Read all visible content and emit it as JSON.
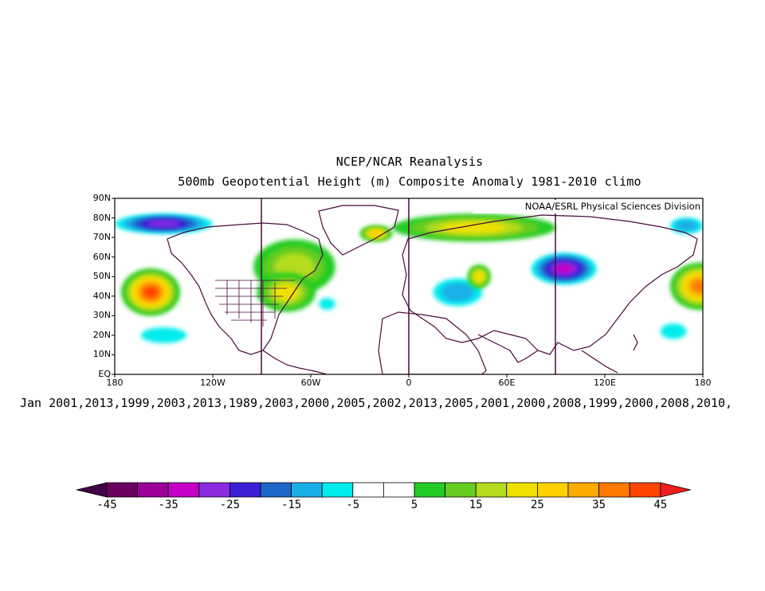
{
  "title_line1": "NCEP/NCAR Reanalysis",
  "title_line2": "500mb Geopotential Height (m) Composite Anomaly 1981-2010 climo",
  "credit": "NOAA/ESRL Physical Sciences Division",
  "years_line": "Jan 2001,2013,1999,2003,2013,1989,2003,2000,2005,2002,2013,2005,2001,2000,2008,1999,2000,2008,2010,",
  "lat_labels": [
    "90N",
    "80N",
    "70N",
    "60N",
    "50N",
    "40N",
    "30N",
    "20N",
    "10N",
    "EQ"
  ],
  "lon_labels": [
    "180",
    "120W",
    "60W",
    "0",
    "60E",
    "120E",
    "180"
  ],
  "colorbar": {
    "labels": [
      "-45",
      "-35",
      "-25",
      "-15",
      "-5",
      "5",
      "15",
      "25",
      "35",
      "45"
    ],
    "colors": [
      "#6a005f",
      "#9a0099",
      "#c400c4",
      "#8a2be2",
      "#3b1fd6",
      "#1d66c8",
      "#1aaee6",
      "#00ecec",
      "#ffffff",
      "#ffffff",
      "#22cc22",
      "#66cc22",
      "#b4dc1e",
      "#f0e000",
      "#ffd000",
      "#ffaa00",
      "#ff7800",
      "#ff4400"
    ],
    "low_color": "#440044",
    "high_color": "#ee1e1e"
  },
  "map": {
    "lon_range": [
      -180,
      180
    ],
    "lat_range": [
      0,
      90
    ],
    "anomaly_blobs": [
      {
        "lon": -158,
        "lat": 42,
        "rx": 18,
        "ry": 12,
        "value": 40
      },
      {
        "lon": -150,
        "lat": 77,
        "rx": 30,
        "ry": 5,
        "value": -25
      },
      {
        "lon": -150,
        "lat": 20,
        "rx": 14,
        "ry": 4,
        "value": -8
      },
      {
        "lon": -70,
        "lat": 55,
        "rx": 25,
        "ry": 14,
        "value": 15
      },
      {
        "lon": -75,
        "lat": 42,
        "rx": 18,
        "ry": 10,
        "value": 20
      },
      {
        "lon": -50,
        "lat": 36,
        "rx": 5,
        "ry": 3,
        "value": -8
      },
      {
        "lon": -20,
        "lat": 72,
        "rx": 10,
        "ry": 4,
        "value": 28
      },
      {
        "lon": 30,
        "lat": 42,
        "rx": 15,
        "ry": 7,
        "value": -10
      },
      {
        "lon": 43,
        "lat": 50,
        "rx": 7,
        "ry": 6,
        "value": 24
      },
      {
        "lon": 95,
        "lat": 54,
        "rx": 20,
        "ry": 8,
        "value": -30
      },
      {
        "lon": 40,
        "lat": 75,
        "rx": 50,
        "ry": 7,
        "value": 20
      },
      {
        "lon": 170,
        "lat": 76,
        "rx": 10,
        "ry": 4,
        "value": -12
      },
      {
        "lon": 178,
        "lat": 45,
        "rx": 18,
        "ry": 12,
        "value": 35
      },
      {
        "lon": 162,
        "lat": 22,
        "rx": 8,
        "ry": 4,
        "value": -8
      }
    ]
  }
}
